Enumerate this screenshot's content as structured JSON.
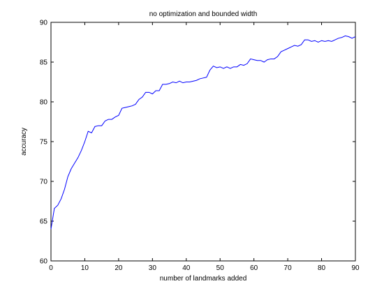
{
  "chart_data": {
    "type": "line",
    "title": "no optimization and bounded width",
    "xlabel": "number of landmarks added",
    "ylabel": "accuracy",
    "xlim": [
      0,
      90
    ],
    "ylim": [
      60,
      90
    ],
    "xticks": [
      0,
      10,
      20,
      30,
      40,
      50,
      60,
      70,
      80,
      90
    ],
    "yticks": [
      60,
      65,
      70,
      75,
      80,
      85,
      90
    ],
    "grid": false,
    "line_color": "#0000ff",
    "series": [
      {
        "x": [
          0,
          1,
          2,
          3,
          4,
          5,
          6,
          7,
          8,
          9,
          10,
          11,
          12,
          13,
          14,
          15,
          16,
          17,
          18,
          19,
          20,
          21,
          22,
          23,
          24,
          25,
          26,
          27,
          28,
          29,
          30,
          31,
          32,
          33,
          34,
          35,
          36,
          37,
          38,
          39,
          40,
          41,
          42,
          43,
          44,
          45,
          46,
          47,
          48,
          49,
          50,
          51,
          52,
          53,
          54,
          55,
          56,
          57,
          58,
          59,
          60,
          61,
          62,
          63,
          64,
          65,
          66,
          67,
          68,
          69,
          70,
          71,
          72,
          73,
          74,
          75,
          76,
          77,
          78,
          79,
          80,
          81,
          82,
          83,
          84,
          85,
          86,
          87,
          88,
          89,
          90
        ],
        "y": [
          64.0,
          66.6,
          67.0,
          67.8,
          69.0,
          70.6,
          71.6,
          72.3,
          73.0,
          73.9,
          75.0,
          76.3,
          76.1,
          76.9,
          77.0,
          77.0,
          77.6,
          77.8,
          77.8,
          78.1,
          78.3,
          79.2,
          79.3,
          79.4,
          79.5,
          79.7,
          80.3,
          80.6,
          81.2,
          81.2,
          81.0,
          81.4,
          81.4,
          82.2,
          82.2,
          82.3,
          82.5,
          82.4,
          82.6,
          82.4,
          82.5,
          82.5,
          82.6,
          82.7,
          82.9,
          83.0,
          83.1,
          84.0,
          84.5,
          84.3,
          84.4,
          84.2,
          84.4,
          84.2,
          84.4,
          84.4,
          84.7,
          84.6,
          84.8,
          85.4,
          85.3,
          85.2,
          85.2,
          85.0,
          85.3,
          85.4,
          85.4,
          85.7,
          86.3,
          86.5,
          86.7,
          86.9,
          87.1,
          87.0,
          87.2,
          87.8,
          87.8,
          87.6,
          87.7,
          87.5,
          87.7,
          87.6,
          87.7,
          87.6,
          87.8,
          88.0,
          88.1,
          88.3,
          88.2,
          88.0,
          88.2
        ]
      }
    ]
  }
}
